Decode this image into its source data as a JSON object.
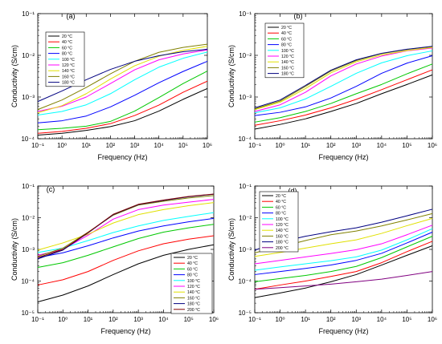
{
  "chart_data": [
    {
      "type": "line",
      "panel_label": "(a)",
      "xlabel": "Frequency (Hz)",
      "ylabel": "Conductivity (S/cm)",
      "x_scale": "log",
      "y_scale": "log",
      "xlim": [
        0.1,
        1000000
      ],
      "ylim": [
        0.0001,
        0.1
      ],
      "x_tick_labels": [
        "10⁻¹",
        "10⁰",
        "10¹",
        "10²",
        "10³",
        "10⁴",
        "10⁵",
        "10⁶"
      ],
      "y_tick_labels": [
        "10⁻⁴",
        "10⁻³",
        "10⁻²",
        "10⁻¹"
      ],
      "legend_position": "top-left",
      "grid": false,
      "x": [
        0.1,
        1,
        10,
        100,
        1000,
        10000,
        100000,
        1000000
      ],
      "series": [
        {
          "name": "20 °C",
          "color": "#000000",
          "values": [
            0.000122,
            0.000135,
            0.000158,
            0.000195,
            0.00027,
            0.00046,
            0.00088,
            0.0016
          ]
        },
        {
          "name": "40 °C",
          "color": "#ff0000",
          "values": [
            0.000135,
            0.00015,
            0.000178,
            0.00023,
            0.00036,
            0.00064,
            0.0013,
            0.0024
          ]
        },
        {
          "name": "60 °C",
          "color": "#00c800",
          "values": [
            0.000165,
            0.000178,
            0.0002,
            0.00026,
            0.00046,
            0.00097,
            0.0021,
            0.0042
          ]
        },
        {
          "name": "80 °C",
          "color": "#0000ff",
          "values": [
            0.00024,
            0.00027,
            0.00035,
            0.00058,
            0.0011,
            0.0022,
            0.0041,
            0.0072
          ]
        },
        {
          "name": "100 °C",
          "color": "#00ffff",
          "values": [
            0.00037,
            0.00045,
            0.00065,
            0.0012,
            0.0026,
            0.0052,
            0.0085,
            0.012
          ]
        },
        {
          "name": "120 °C",
          "color": "#ff00ff",
          "values": [
            0.00045,
            0.0006,
            0.001,
            0.0021,
            0.0045,
            0.0078,
            0.0108,
            0.0135
          ]
        },
        {
          "name": "140 °C",
          "color": "#e0e000",
          "values": [
            0.00042,
            0.00062,
            0.0012,
            0.0027,
            0.0056,
            0.0095,
            0.0132,
            0.0165
          ]
        },
        {
          "name": "160 °C",
          "color": "#808000",
          "values": [
            0.0005,
            0.00085,
            0.0017,
            0.0036,
            0.0072,
            0.0118,
            0.0155,
            0.0185
          ]
        },
        {
          "name": "180 °C",
          "color": "#000080",
          "values": [
            0.00078,
            0.0014,
            0.0026,
            0.0046,
            0.0072,
            0.0098,
            0.0122,
            0.014
          ]
        }
      ]
    },
    {
      "type": "line",
      "panel_label": "(b)",
      "xlabel": "Frequency (Hz)",
      "ylabel": "Conductivity (S/cm)",
      "x_scale": "log",
      "y_scale": "log",
      "xlim": [
        0.1,
        1000000
      ],
      "ylim": [
        0.0001,
        0.1
      ],
      "x_tick_labels": [
        "10⁻¹",
        "10⁰",
        "10¹",
        "10²",
        "10³",
        "10⁴",
        "10⁵",
        "10⁶"
      ],
      "y_tick_labels": [
        "10⁻⁴",
        "10⁻³",
        "10⁻²",
        "10⁻¹"
      ],
      "legend_position": "top-left",
      "grid": false,
      "x": [
        0.1,
        1,
        10,
        100,
        1000,
        10000,
        100000,
        1000000
      ],
      "series": [
        {
          "name": "20 °C",
          "color": "#000000",
          "values": [
            0.00017,
            0.00022,
            0.0003,
            0.00045,
            0.0007,
            0.0012,
            0.002,
            0.0034
          ]
        },
        {
          "name": "40 °C",
          "color": "#ff0000",
          "values": [
            0.00021,
            0.00027,
            0.00037,
            0.00055,
            0.00088,
            0.0015,
            0.0026,
            0.0045
          ]
        },
        {
          "name": "60 °C",
          "color": "#00c800",
          "values": [
            0.00025,
            0.00032,
            0.00045,
            0.0007,
            0.0012,
            0.002,
            0.0036,
            0.0062
          ]
        },
        {
          "name": "80 °C",
          "color": "#0000ff",
          "values": [
            0.00036,
            0.00043,
            0.00058,
            0.00095,
            0.0018,
            0.0037,
            0.0065,
            0.0098
          ]
        },
        {
          "name": "100 °C",
          "color": "#00ffff",
          "values": [
            0.00042,
            0.00055,
            0.0009,
            0.0018,
            0.0037,
            0.0066,
            0.0098,
            0.0128
          ]
        },
        {
          "name": "120 °C",
          "color": "#ff00ff",
          "values": [
            0.00045,
            0.00065,
            0.0013,
            0.0032,
            0.0062,
            0.0096,
            0.0128,
            0.015
          ]
        },
        {
          "name": "140 °C",
          "color": "#e0e000",
          "values": [
            0.0005,
            0.00075,
            0.0016,
            0.0038,
            0.007,
            0.0102,
            0.013,
            0.0155
          ]
        },
        {
          "name": "160 °C",
          "color": "#808000",
          "values": [
            0.00052,
            0.0008,
            0.0018,
            0.0042,
            0.0075,
            0.011,
            0.0138,
            0.0162
          ]
        },
        {
          "name": "180 °C",
          "color": "#000080",
          "values": [
            0.00055,
            0.00085,
            0.0019,
            0.0044,
            0.0078,
            0.0112,
            0.014,
            0.0165
          ]
        }
      ]
    },
    {
      "type": "line",
      "panel_label": "(c)",
      "xlabel": "Frequency (Hz)",
      "ylabel": "Conductivity (S/cm)",
      "x_scale": "log",
      "y_scale": "log",
      "xlim": [
        0.1,
        1000000
      ],
      "ylim": [
        1e-05,
        0.1
      ],
      "x_tick_labels": [
        "10⁻¹",
        "10⁰",
        "10¹",
        "10²",
        "10³",
        "10⁴",
        "10⁵",
        "10⁶"
      ],
      "y_tick_labels": [
        "10⁻⁵",
        "10⁻⁴",
        "10⁻³",
        "10⁻²",
        "10⁻¹"
      ],
      "legend_position": "bottom-right",
      "grid": false,
      "x": [
        0.1,
        1,
        10,
        100,
        1000,
        10000,
        100000,
        1000000
      ],
      "series": [
        {
          "name": "20 °C",
          "color": "#000000",
          "values": [
            2.2e-05,
            3.6e-05,
            7e-05,
            0.00016,
            0.00035,
            0.00065,
            0.001,
            0.0014
          ]
        },
        {
          "name": "40 °C",
          "color": "#ff0000",
          "values": [
            7.5e-05,
            0.00011,
            0.0002,
            0.00045,
            0.0009,
            0.0015,
            0.0021,
            0.0027
          ]
        },
        {
          "name": "60 °C",
          "color": "#00c800",
          "values": [
            0.00027,
            0.00038,
            0.00065,
            0.0012,
            0.0022,
            0.0035,
            0.0048,
            0.0062
          ]
        },
        {
          "name": "80 °C",
          "color": "#0000ff",
          "values": [
            0.00055,
            0.00078,
            0.0013,
            0.0023,
            0.0038,
            0.0055,
            0.0074,
            0.0095
          ]
        },
        {
          "name": "100 °C",
          "color": "#00ffff",
          "values": [
            0.0008,
            0.0011,
            0.0019,
            0.0034,
            0.0055,
            0.0082,
            0.011,
            0.0145
          ]
        },
        {
          "name": "120 °C",
          "color": "#ff00ff",
          "values": [
            0.00065,
            0.001,
            0.0028,
            0.009,
            0.018,
            0.025,
            0.031,
            0.038
          ]
        },
        {
          "name": "140 °C",
          "color": "#e0e000",
          "values": [
            0.00095,
            0.0016,
            0.003,
            0.0068,
            0.0125,
            0.018,
            0.024,
            0.03
          ]
        },
        {
          "name": "160 °C",
          "color": "#808000",
          "values": [
            0.0006,
            0.0011,
            0.0035,
            0.012,
            0.025,
            0.033,
            0.042,
            0.05
          ]
        },
        {
          "name": "180 °C",
          "color": "#000080",
          "values": [
            0.0005,
            0.00095,
            0.0033,
            0.0125,
            0.026,
            0.035,
            0.046,
            0.055
          ]
        },
        {
          "name": "200 °C",
          "color": "#800000",
          "values": [
            0.00055,
            0.001,
            0.0034,
            0.0128,
            0.0265,
            0.036,
            0.047,
            0.056
          ]
        }
      ]
    },
    {
      "type": "line",
      "panel_label": "(d)",
      "xlabel": "Frequency (Hz)",
      "ylabel": "Conductivity (S/cm)",
      "x_scale": "log",
      "y_scale": "log",
      "xlim": [
        0.1,
        1000000
      ],
      "ylim": [
        1e-05,
        0.1
      ],
      "x_tick_labels": [
        "10⁻¹",
        "10⁰",
        "10¹",
        "10²",
        "10³",
        "10⁴",
        "10⁵",
        "10⁶"
      ],
      "y_tick_labels": [
        "10⁻⁵",
        "10⁻⁴",
        "10⁻³",
        "10⁻²",
        "10⁻¹"
      ],
      "legend_position": "top-left",
      "grid": false,
      "x": [
        0.1,
        1,
        10,
        100,
        1000,
        10000,
        100000,
        1000000
      ],
      "series": [
        {
          "name": "20 °C",
          "color": "#000000",
          "values": [
            3e-05,
            4.2e-05,
            6e-05,
            9.5e-05,
            0.00016,
            0.00032,
            0.00065,
            0.0013
          ]
        },
        {
          "name": "40 °C",
          "color": "#ff0000",
          "values": [
            5.5e-05,
            7.5e-05,
            0.0001,
            0.00014,
            0.0002,
            0.00038,
            0.00085,
            0.0018
          ]
        },
        {
          "name": "60 °C",
          "color": "#00c800",
          "values": [
            9.5e-05,
            0.00012,
            0.00015,
            0.0002,
            0.00029,
            0.00055,
            0.0012,
            0.0026
          ]
        },
        {
          "name": "80 °C",
          "color": "#0000ff",
          "values": [
            0.00016,
            0.0002,
            0.00025,
            0.00032,
            0.00045,
            0.00075,
            0.0016,
            0.0035
          ]
        },
        {
          "name": "100 °C",
          "color": "#00ffff",
          "values": [
            0.00022,
            0.00028,
            0.00035,
            0.00044,
            0.00058,
            0.00095,
            0.002,
            0.0045
          ]
        },
        {
          "name": "120 °C",
          "color": "#ff00ff",
          "values": [
            0.00035,
            0.00045,
            0.00058,
            0.00074,
            0.00098,
            0.0015,
            0.0029,
            0.0058
          ]
        },
        {
          "name": "140 °C",
          "color": "#e0e000",
          "values": [
            0.0006,
            0.0008,
            0.0011,
            0.0015,
            0.002,
            0.0032,
            0.0056,
            0.0095
          ]
        },
        {
          "name": "160 °C",
          "color": "#808000",
          "values": [
            0.00078,
            0.0012,
            0.0019,
            0.0029,
            0.0038,
            0.0055,
            0.0085,
            0.0135
          ]
        },
        {
          "name": "180 °C",
          "color": "#000080",
          "values": [
            0.00095,
            0.0017,
            0.0026,
            0.0036,
            0.0048,
            0.0072,
            0.0115,
            0.0185
          ]
        },
        {
          "name": "200 °C",
          "color": "#800080",
          "values": [
            5.5e-05,
            6.2e-05,
            7e-05,
            8e-05,
            9.5e-05,
            0.000115,
            0.00015,
            0.0002
          ]
        }
      ]
    }
  ]
}
